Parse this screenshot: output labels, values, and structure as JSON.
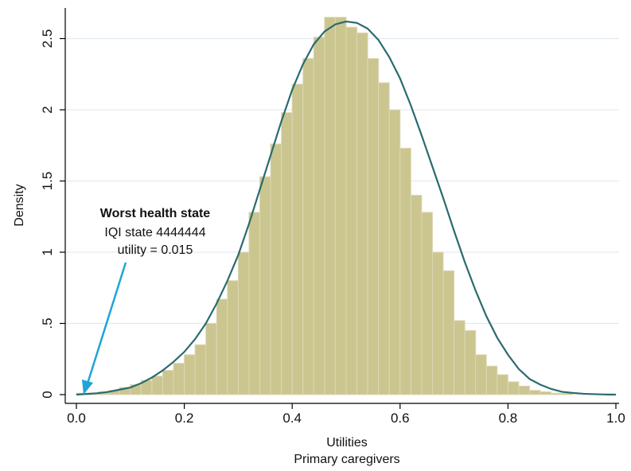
{
  "chart_data": {
    "type": "bar",
    "title": "",
    "xlabel": "Utilities",
    "xlabel2": "Primary caregivers",
    "ylabel": "Density",
    "xlim": [
      0,
      1
    ],
    "ylim": [
      0,
      2.72
    ],
    "x_ticks": [
      "0.0",
      "0.2",
      "0.4",
      "0.6",
      "0.8",
      "1.0"
    ],
    "y_ticks": [
      "0",
      ".5",
      "1",
      "1.5",
      "2",
      "2.5"
    ],
    "bin_width": 0.02,
    "grid": "horizontal",
    "bins_left": [
      0.0,
      0.02,
      0.04,
      0.06,
      0.08,
      0.1,
      0.12,
      0.14,
      0.16,
      0.18,
      0.2,
      0.22,
      0.24,
      0.26,
      0.28,
      0.3,
      0.32,
      0.34,
      0.36,
      0.38,
      0.4,
      0.42,
      0.44,
      0.46,
      0.48,
      0.5,
      0.52,
      0.54,
      0.56,
      0.58,
      0.6,
      0.62,
      0.64,
      0.66,
      0.68,
      0.7,
      0.72,
      0.74,
      0.76,
      0.78,
      0.8,
      0.82,
      0.84,
      0.86,
      0.88,
      0.9,
      0.92,
      0.94,
      0.96,
      0.98
    ],
    "values": [
      0.01,
      0.01,
      0.02,
      0.03,
      0.05,
      0.07,
      0.1,
      0.13,
      0.17,
      0.22,
      0.28,
      0.35,
      0.5,
      0.67,
      0.8,
      1.0,
      1.28,
      1.53,
      1.76,
      1.98,
      2.18,
      2.36,
      2.51,
      2.65,
      2.65,
      2.58,
      2.54,
      2.36,
      2.19,
      2.0,
      1.73,
      1.4,
      1.28,
      1.0,
      0.87,
      0.52,
      0.45,
      0.28,
      0.2,
      0.14,
      0.09,
      0.06,
      0.03,
      0.02,
      0.01,
      0.01,
      0.0,
      0.0,
      0.0,
      0.0
    ],
    "density_curve": {
      "x": [
        0.0,
        0.02,
        0.04,
        0.06,
        0.08,
        0.1,
        0.12,
        0.14,
        0.16,
        0.18,
        0.2,
        0.22,
        0.24,
        0.26,
        0.28,
        0.3,
        0.32,
        0.34,
        0.36,
        0.38,
        0.4,
        0.42,
        0.44,
        0.46,
        0.48,
        0.5,
        0.52,
        0.54,
        0.56,
        0.58,
        0.6,
        0.62,
        0.64,
        0.66,
        0.68,
        0.7,
        0.72,
        0.74,
        0.76,
        0.78,
        0.8,
        0.82,
        0.84,
        0.86,
        0.88,
        0.9,
        0.92,
        0.94,
        0.96,
        0.98,
        1.0
      ],
      "y": [
        0.0,
        0.005,
        0.01,
        0.02,
        0.035,
        0.05,
        0.08,
        0.12,
        0.17,
        0.23,
        0.3,
        0.39,
        0.5,
        0.64,
        0.8,
        0.98,
        1.2,
        1.44,
        1.68,
        1.92,
        2.14,
        2.32,
        2.46,
        2.55,
        2.6,
        2.62,
        2.61,
        2.57,
        2.49,
        2.37,
        2.22,
        2.03,
        1.82,
        1.6,
        1.38,
        1.15,
        0.93,
        0.73,
        0.55,
        0.4,
        0.28,
        0.18,
        0.11,
        0.07,
        0.04,
        0.02,
        0.012,
        0.006,
        0.003,
        0.001,
        0.0
      ]
    },
    "colors": {
      "bar_fill": "#cbc590",
      "bar_stroke": "#ddd8b4",
      "curve": "#2a6b6e",
      "grid": "#e3ecf2",
      "arrow": "#1ea4d8",
      "axis": "#000000"
    },
    "annotation": {
      "line1": "Worst health state",
      "line2": "IQI state 4444444",
      "line3": "utility = 0.015",
      "x": 0.015,
      "y": 0
    }
  }
}
